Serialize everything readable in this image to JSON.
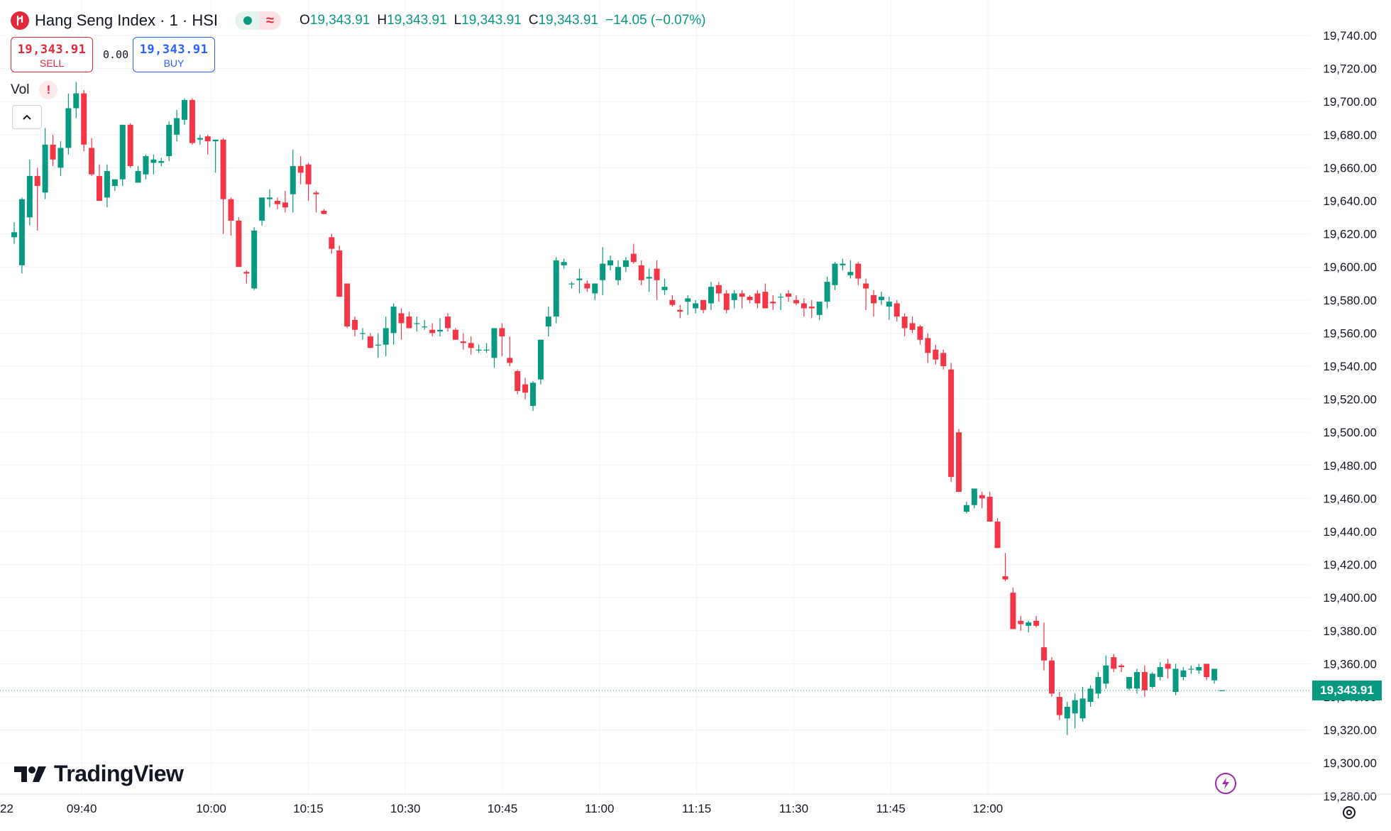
{
  "header": {
    "title": "Hang Seng Index · 1 · HSI",
    "logo_letter": "∙",
    "wave_symbol": "≈",
    "ohlc": [
      {
        "k": "O",
        "v": "19,343.91"
      },
      {
        "k": "H",
        "v": "19,343.91"
      },
      {
        "k": "L",
        "v": "19,343.91"
      },
      {
        "k": "C",
        "v": "19,343.91"
      }
    ],
    "change": "−14.05 (−0.07%)"
  },
  "trade": {
    "sell_price": "19,343.91",
    "sell_label": "SELL",
    "spread": "0.00",
    "buy_price": "19,343.91",
    "buy_label": "BUY"
  },
  "indicator": {
    "label": "Vol",
    "warning": "!"
  },
  "branding": {
    "wordmark": "TradingView"
  },
  "current_price_label": "19,343.91",
  "icons": {
    "collapse": "chevron-up-icon",
    "alert": "lightning-icon",
    "settings": "gear-icon"
  },
  "colors": {
    "up": "#089981",
    "down": "#f23645",
    "grid": "#f0f3fa",
    "text": "#131722"
  },
  "chart_data": {
    "type": "candlestick",
    "interval": "1 minute",
    "y_ticks": [
      19280,
      19300,
      19320,
      19340,
      19360,
      19380,
      19400,
      19420,
      19440,
      19460,
      19480,
      19500,
      19520,
      19540,
      19560,
      19580,
      19600,
      19620,
      19640,
      19660,
      19680,
      19700,
      19720,
      19740
    ],
    "ylim": [
      19280,
      19750
    ],
    "x_ticks": [
      "22",
      "09:40",
      "10:00",
      "10:15",
      "10:30",
      "10:45",
      "11:00",
      "11:15",
      "11:30",
      "11:45",
      "12:00"
    ],
    "current_price": 19343.91,
    "candles": [
      [
        19618,
        19627,
        19614,
        19621
      ],
      [
        19601,
        19642,
        19596,
        19641
      ],
      [
        19630,
        19665,
        19625,
        19655
      ],
      [
        19655,
        19660,
        19622,
        19649
      ],
      [
        19645,
        19684,
        19641,
        19674
      ],
      [
        19674,
        19680,
        19661,
        19665
      ],
      [
        19660,
        19676,
        19655,
        19672
      ],
      [
        19672,
        19705,
        19668,
        19696
      ],
      [
        19696,
        19712,
        19690,
        19705
      ],
      [
        19705,
        19707,
        19670,
        19674
      ],
      [
        19672,
        19678,
        19655,
        19656
      ],
      [
        19655,
        19662,
        19642,
        19640
      ],
      [
        19642,
        19662,
        19636,
        19658
      ],
      [
        19649,
        19653,
        19646,
        19653
      ],
      [
        19653,
        19686,
        19649,
        19686
      ],
      [
        19686,
        19687,
        19660,
        19661
      ],
      [
        19651,
        19661,
        19651,
        19658
      ],
      [
        19656,
        19668,
        19653,
        19667
      ],
      [
        19663,
        19668,
        19656,
        19665
      ],
      [
        19663,
        19666,
        19661,
        19664
      ],
      [
        19667,
        19688,
        19664,
        19686
      ],
      [
        19680,
        19695,
        19676,
        19690
      ],
      [
        19689,
        19702,
        19686,
        19701
      ],
      [
        19701,
        19702,
        19674,
        19675
      ],
      [
        19677,
        19680,
        19674,
        19678
      ],
      [
        19679,
        19680,
        19668,
        19676
      ],
      [
        19676,
        19677,
        19657,
        19677
      ],
      [
        19677,
        19678,
        19620,
        19641
      ],
      [
        19641,
        19642,
        19619,
        19628
      ],
      [
        19628,
        19630,
        19601,
        19600
      ],
      [
        19597,
        19598,
        19590,
        19596
      ],
      [
        19587,
        19624,
        19586,
        19622
      ],
      [
        19628,
        19642,
        19625,
        19642
      ],
      [
        19641,
        19647,
        19636,
        19642
      ],
      [
        19640,
        19642,
        19635,
        19638
      ],
      [
        19639,
        19646,
        19633,
        19636
      ],
      [
        19644,
        19671,
        19633,
        19661
      ],
      [
        19661,
        19667,
        19650,
        19657
      ],
      [
        19662,
        19663,
        19640,
        19650
      ],
      [
        19645,
        19646,
        19633,
        19644
      ],
      [
        19634,
        19635,
        19632,
        19632
      ],
      [
        19618,
        19620,
        19608,
        19611
      ],
      [
        19610,
        19613,
        19586,
        19582
      ],
      [
        19590,
        19590,
        19563,
        19564
      ],
      [
        19568,
        19570,
        19558,
        19562
      ],
      [
        19560,
        19563,
        19556,
        19560
      ],
      [
        19558,
        19560,
        19551,
        19551
      ],
      [
        19553,
        19560,
        19545,
        19553
      ],
      [
        19553,
        19570,
        19546,
        19563
      ],
      [
        19560,
        19578,
        19553,
        19576
      ],
      [
        19572,
        19575,
        19556,
        19566
      ],
      [
        19570,
        19573,
        19563,
        19563
      ],
      [
        19566,
        19570,
        19561,
        19566
      ],
      [
        19564,
        19568,
        19562,
        19564
      ],
      [
        19562,
        19566,
        19558,
        19560
      ],
      [
        19561,
        19569,
        19558,
        19562
      ],
      [
        19570,
        19572,
        19561,
        19563
      ],
      [
        19562,
        19563,
        19556,
        19556
      ],
      [
        19555,
        19560,
        19550,
        19554
      ],
      [
        19554,
        19558,
        19547,
        19551
      ],
      [
        19550,
        19553,
        19548,
        19550
      ],
      [
        19550,
        19554,
        19548,
        19550
      ],
      [
        19545,
        19563,
        19539,
        19563
      ],
      [
        19563,
        19566,
        19546,
        19558
      ],
      [
        19545,
        19558,
        19540,
        19542
      ],
      [
        19537,
        19538,
        19523,
        19525
      ],
      [
        19529,
        19533,
        19520,
        19524
      ],
      [
        19516,
        19531,
        19513,
        19530
      ],
      [
        19532,
        19556,
        19529,
        19556
      ],
      [
        19564,
        19576,
        19558,
        19570
      ],
      [
        19570,
        19606,
        19566,
        19604
      ],
      [
        19601,
        19605,
        19599,
        19603
      ],
      [
        19590,
        19591,
        19587,
        19590
      ],
      [
        19592,
        19599,
        19584,
        19593
      ],
      [
        19590,
        19592,
        19585,
        19587
      ],
      [
        19584,
        19590,
        19580,
        19590
      ],
      [
        19592,
        19612,
        19583,
        19602
      ],
      [
        19601,
        19607,
        19598,
        19604
      ],
      [
        19592,
        19604,
        19589,
        19600
      ],
      [
        19600,
        19606,
        19597,
        19604
      ],
      [
        19608,
        19614,
        19602,
        19603
      ],
      [
        19601,
        19604,
        19589,
        19592
      ],
      [
        19593,
        19599,
        19585,
        19594
      ],
      [
        19599,
        19604,
        19580,
        19592
      ],
      [
        19586,
        19593,
        19583,
        19588
      ],
      [
        19580,
        19583,
        19576,
        19577
      ],
      [
        19574,
        19577,
        19569,
        19573
      ],
      [
        19579,
        19583,
        19571,
        19581
      ],
      [
        19575,
        19580,
        19572,
        19578
      ],
      [
        19580,
        19580,
        19572,
        19574
      ],
      [
        19578,
        19591,
        19574,
        19588
      ],
      [
        19589,
        19591,
        19579,
        19584
      ],
      [
        19584,
        19586,
        19572,
        19574
      ],
      [
        19580,
        19586,
        19575,
        19584
      ],
      [
        19584,
        19586,
        19575,
        19582
      ],
      [
        19582,
        19583,
        19578,
        19580
      ],
      [
        19584,
        19586,
        19575,
        19578
      ],
      [
        19585,
        19590,
        19578,
        19575
      ],
      [
        19579,
        19583,
        19574,
        19578
      ],
      [
        19582,
        19584,
        19574,
        19582
      ],
      [
        19584,
        19586,
        19579,
        19582
      ],
      [
        19580,
        19583,
        19577,
        19578
      ],
      [
        19578,
        19581,
        19570,
        19575
      ],
      [
        19576,
        19580,
        19569,
        19575
      ],
      [
        19571,
        19575,
        19568,
        19579
      ],
      [
        19579,
        19594,
        19575,
        19591
      ],
      [
        19589,
        19603,
        19586,
        19602
      ],
      [
        19601,
        19605,
        19598,
        19602
      ],
      [
        19595,
        19604,
        19593,
        19597
      ],
      [
        19602,
        19603,
        19589,
        19593
      ],
      [
        19590,
        19593,
        19574,
        19587
      ],
      [
        19583,
        19586,
        19570,
        19578
      ],
      [
        19580,
        19585,
        19577,
        19582
      ],
      [
        19576,
        19582,
        19568,
        19579
      ],
      [
        19578,
        19580,
        19567,
        19570
      ],
      [
        19570,
        19572,
        19558,
        19563
      ],
      [
        19566,
        19570,
        19560,
        19562
      ],
      [
        19564,
        19565,
        19553,
        19556
      ],
      [
        19557,
        19560,
        19542,
        19548
      ],
      [
        19550,
        19553,
        19541,
        19544
      ],
      [
        19548,
        19550,
        19538,
        19540
      ],
      [
        19538,
        19542,
        19470,
        19473
      ],
      [
        19500,
        19502,
        19464,
        19464
      ],
      [
        19452,
        19458,
        19451,
        19456
      ],
      [
        19456,
        19466,
        19454,
        19466
      ],
      [
        19462,
        19464,
        19454,
        19460
      ],
      [
        19461,
        19464,
        19448,
        19446
      ],
      [
        19446,
        19448,
        19431,
        19430
      ],
      [
        19413,
        19427,
        19410,
        19411
      ],
      [
        19403,
        19406,
        19384,
        19381
      ],
      [
        19386,
        19389,
        19380,
        19384
      ],
      [
        19383,
        19386,
        19379,
        19385
      ],
      [
        19386,
        19389,
        19382,
        19383
      ],
      [
        19370,
        19385,
        19356,
        19362
      ],
      [
        19362,
        19364,
        19340,
        19342
      ],
      [
        19340,
        19343,
        19326,
        19329
      ],
      [
        19327,
        19337,
        19317,
        19334
      ],
      [
        19330,
        19342,
        19321,
        19338
      ],
      [
        19327,
        19346,
        19325,
        19339
      ],
      [
        19337,
        19347,
        19334,
        19345
      ],
      [
        19342,
        19355,
        19339,
        19352
      ],
      [
        19348,
        19365,
        19345,
        19359
      ],
      [
        19364,
        19366,
        19355,
        19357
      ],
      [
        19359,
        19360,
        19355,
        19358
      ],
      [
        19345,
        19352,
        19344,
        19352
      ],
      [
        19345,
        19357,
        19342,
        19355
      ],
      [
        19355,
        19359,
        19340,
        19344
      ],
      [
        19346,
        19355,
        19345,
        19354
      ],
      [
        19352,
        19361,
        19350,
        19358
      ],
      [
        19360,
        19363,
        19351,
        19357
      ],
      [
        19343,
        19360,
        19341,
        19357
      ],
      [
        19352,
        19358,
        19350,
        19356
      ],
      [
        19357,
        19359,
        19354,
        19357
      ],
      [
        19356,
        19360,
        19354,
        19358
      ],
      [
        19360,
        19360,
        19350,
        19352
      ],
      [
        19350,
        19357,
        19348,
        19357
      ],
      [
        19344,
        19344,
        19344,
        19344
      ]
    ]
  }
}
